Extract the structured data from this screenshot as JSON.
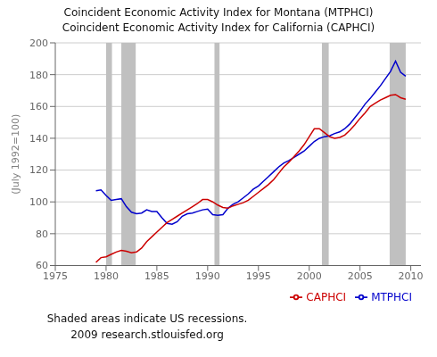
{
  "chart_data": {
    "type": "line",
    "title": "Coincident Economic Activity Index for Montana (MTPHCI)",
    "subtitle": "Coincident Economic Activity Index for California (CAPHCI)",
    "y_label": "(July 1992=100)",
    "annotations": [
      "Shaded areas indicate US recessions.",
      "2009 research.stlouisfed.org"
    ],
    "xlim": [
      1975,
      2011
    ],
    "ylim": [
      60,
      200
    ],
    "xticks": [
      1975,
      1980,
      1985,
      1990,
      1995,
      2000,
      2005,
      2010
    ],
    "yticks": [
      60,
      80,
      100,
      120,
      140,
      160,
      180,
      200
    ],
    "grid": true,
    "legend": "lower right",
    "recessions": {
      "color": "#c0c0c0",
      "ranges": [
        [
          1980.0,
          1980.58
        ],
        [
          1981.5,
          1982.92
        ],
        [
          1990.67,
          1991.17
        ],
        [
          2001.25,
          2001.92
        ],
        [
          2007.92,
          2009.5
        ]
      ]
    },
    "x": [
      1979.0,
      1979.5,
      1980.0,
      1980.5,
      1981.0,
      1981.5,
      1982.0,
      1982.5,
      1983.0,
      1983.5,
      1984.0,
      1984.5,
      1985.0,
      1985.5,
      1986.0,
      1986.5,
      1987.0,
      1987.5,
      1988.0,
      1988.5,
      1989.0,
      1989.5,
      1990.0,
      1990.5,
      1991.0,
      1991.5,
      1992.0,
      1992.5,
      1993.0,
      1993.5,
      1994.0,
      1994.5,
      1995.0,
      1995.5,
      1996.0,
      1996.5,
      1997.0,
      1997.5,
      1998.0,
      1998.5,
      1999.0,
      1999.5,
      2000.0,
      2000.5,
      2001.0,
      2001.5,
      2002.0,
      2002.5,
      2003.0,
      2003.5,
      2004.0,
      2004.5,
      2005.0,
      2005.5,
      2006.0,
      2006.5,
      2007.0,
      2007.5,
      2008.0,
      2008.5,
      2009.0,
      2009.5
    ],
    "series": [
      {
        "name": "MTPHCI",
        "color": "#0000cc",
        "values": [
          107.0,
          107.5,
          104.0,
          101.0,
          101.5,
          102.0,
          97.0,
          93.5,
          92.5,
          93.0,
          95.0,
          94.0,
          94.0,
          90.0,
          86.5,
          86.0,
          87.5,
          91.0,
          92.5,
          93.0,
          94.0,
          95.0,
          95.5,
          92.0,
          91.5,
          92.0,
          96.0,
          98.5,
          100.0,
          102.5,
          105.0,
          108.0,
          110.0,
          113.0,
          116.0,
          119.0,
          122.0,
          124.5,
          126.0,
          128.0,
          130.0,
          132.0,
          135.0,
          138.0,
          140.0,
          141.0,
          141.5,
          143.0,
          144.0,
          146.0,
          149.0,
          153.0,
          157.0,
          161.5,
          165.0,
          169.0,
          173.0,
          177.5,
          182.0,
          188.5,
          181.5,
          179.0
        ]
      },
      {
        "name": "CAPHCI",
        "color": "#cc0000",
        "values": [
          62.0,
          65.0,
          65.5,
          67.0,
          68.5,
          69.5,
          69.0,
          68.0,
          68.5,
          71.0,
          75.0,
          78.0,
          81.0,
          84.0,
          87.0,
          89.0,
          91.0,
          93.0,
          95.0,
          97.0,
          99.0,
          101.5,
          101.5,
          100.0,
          98.0,
          96.5,
          96.0,
          97.5,
          98.5,
          99.5,
          101.0,
          103.5,
          106.0,
          108.5,
          111.0,
          114.0,
          118.0,
          122.0,
          125.0,
          128.5,
          132.0,
          136.0,
          141.0,
          146.0,
          146.0,
          143.5,
          141.0,
          140.0,
          140.5,
          142.0,
          145.0,
          148.5,
          152.5,
          156.0,
          160.0,
          162.0,
          164.0,
          165.5,
          167.0,
          167.5,
          165.5,
          164.5
        ]
      }
    ]
  }
}
